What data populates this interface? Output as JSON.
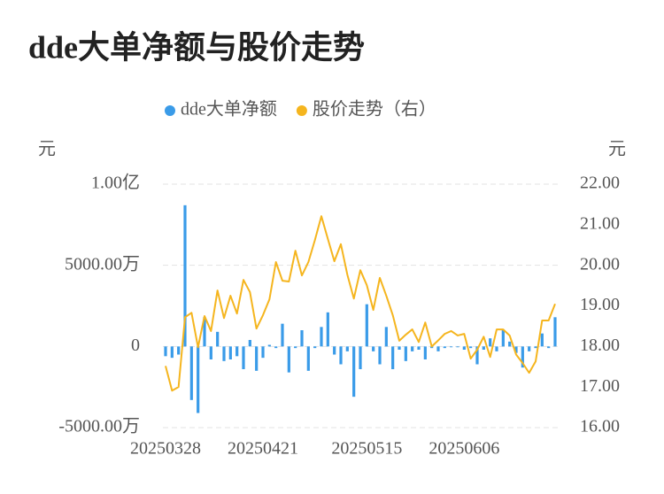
{
  "chart_data": {
    "type": "bar_line",
    "title": "dde大单净额与股价走势",
    "y_label": "元",
    "y2_label": "元",
    "categories": [
      "20250328",
      null,
      null,
      null,
      null,
      null,
      null,
      null,
      null,
      null,
      null,
      null,
      null,
      null,
      null,
      "20250421",
      null,
      null,
      null,
      null,
      null,
      null,
      null,
      null,
      null,
      null,
      null,
      null,
      null,
      null,
      null,
      "20250515",
      null,
      null,
      null,
      null,
      null,
      null,
      null,
      null,
      null,
      null,
      null,
      null,
      null,
      null,
      "20250606",
      null,
      null,
      null,
      null,
      null,
      null,
      null,
      null,
      null,
      null,
      null,
      null,
      null,
      null
    ],
    "series": [
      {
        "name": "dde大单净额",
        "type": "bar",
        "color": "#3a9be8",
        "values": [
          -600,
          -700,
          -500,
          8700,
          -3300,
          -4100,
          1800,
          -800,
          900,
          -900,
          -800,
          -600,
          -1400,
          400,
          -1500,
          -700,
          100,
          -100,
          1400,
          -1600,
          -100,
          1000,
          -1500,
          -100,
          1200,
          2100,
          -500,
          -1100,
          -300,
          -3100,
          -1400,
          2600,
          -300,
          -1100,
          1200,
          -1400,
          -200,
          -900,
          -300,
          -200,
          -800,
          -100,
          -300,
          -100,
          -50,
          -50,
          -200,
          -100,
          -1100,
          -200,
          500,
          -300,
          1000,
          300,
          -400,
          -1300,
          -300,
          -100,
          800,
          -100,
          1800
        ]
      },
      {
        "name": "股价走势（右）",
        "type": "line",
        "axis": "y2",
        "color": "#f5b51e",
        "values": [
          17.52,
          16.91,
          17.0,
          18.72,
          18.83,
          17.98,
          18.75,
          18.38,
          19.38,
          18.7,
          19.25,
          18.81,
          19.64,
          19.34,
          18.44,
          18.77,
          19.16,
          20.08,
          19.62,
          19.6,
          20.36,
          19.75,
          20.08,
          20.62,
          21.21,
          20.65,
          20.1,
          20.52,
          19.77,
          19.18,
          19.88,
          19.51,
          18.9,
          19.69,
          19.25,
          18.77,
          18.14,
          18.29,
          18.42,
          18.11,
          18.59,
          18.0,
          18.15,
          18.31,
          18.38,
          18.27,
          18.31,
          17.7,
          17.92,
          18.24,
          17.74,
          18.42,
          18.42,
          18.27,
          17.8,
          17.59,
          17.35,
          17.63,
          18.64,
          18.64,
          19.05
        ]
      }
    ],
    "ylim": [
      -5000,
      10000
    ],
    "yticks": [
      {
        "value": -5000,
        "label": "-5000.00万"
      },
      0,
      {
        "value": 5000,
        "label": "5000.00万"
      },
      {
        "value": 10000,
        "label": "1.00亿"
      }
    ],
    "y2lim": [
      16,
      22
    ],
    "y2ticks": [
      {
        "value": 16,
        "label": "16.00"
      },
      {
        "value": 17,
        "label": "17.00"
      },
      {
        "value": 18,
        "label": "18.00"
      },
      {
        "value": 19,
        "label": "19.00"
      },
      {
        "value": 20,
        "label": "20.00"
      },
      {
        "value": 21,
        "label": "21.00"
      },
      {
        "value": 22,
        "label": "22.00"
      }
    ],
    "grid": true,
    "legend": "top"
  }
}
